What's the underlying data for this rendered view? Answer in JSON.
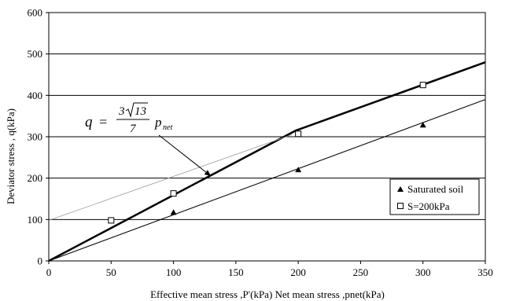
{
  "chart_data": {
    "type": "scatter",
    "title": "",
    "xlabel": "Effective mean stress ,P'(kPa) Net mean stress ,pnet(kPa)",
    "ylabel": "Deviator stress , q(kPa)",
    "xlim": [
      0,
      350
    ],
    "ylim": [
      0,
      600
    ],
    "xticks": [
      0,
      50,
      100,
      150,
      200,
      250,
      300,
      350
    ],
    "yticks": [
      0,
      100,
      200,
      300,
      400,
      500,
      600
    ],
    "grid": "horizontal",
    "legend_position": "bottom-right",
    "series": [
      {
        "name": "Saturated soil",
        "marker": "triangle",
        "x": [
          100,
          200,
          300
        ],
        "y": [
          117,
          220,
          328
        ]
      },
      {
        "name": "S=200kPa",
        "marker": "square-open",
        "x": [
          50,
          100,
          200,
          300
        ],
        "y": [
          98,
          163,
          307,
          425
        ]
      }
    ],
    "lines": [
      {
        "id": "saturated-fit",
        "style": "thin",
        "x": [
          0,
          350
        ],
        "y": [
          0,
          390
        ]
      },
      {
        "id": "unsat-envelope",
        "style": "thick",
        "x": [
          0,
          198,
          350
        ],
        "y": [
          0,
          315,
          480
        ]
      },
      {
        "id": "unsat-fit",
        "style": "faint",
        "x": [
          0,
          195
        ],
        "y": [
          98,
          305
        ]
      }
    ],
    "annotation": {
      "q": "q",
      "eq": "=",
      "num_coef": "3",
      "num_rad": "13",
      "den": "7",
      "p": "p",
      "sub": "net",
      "arrow_to": [
        130,
        205
      ]
    }
  }
}
